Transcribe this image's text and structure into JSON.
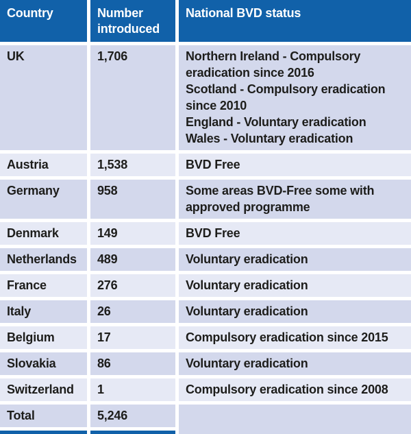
{
  "chart_data": {
    "type": "table",
    "title": "",
    "columns": [
      "Country",
      "Number introduced",
      "National BVD status"
    ],
    "rows": [
      [
        "UK",
        "1,706",
        "Northern Ireland - Compulsory eradication since 2016\nScotland - Compulsory eradication since 2010\nEngland - Voluntary eradication\nWales - Voluntary eradication"
      ],
      [
        "Austria",
        "1,538",
        "BVD Free"
      ],
      [
        "Germany",
        "958",
        "Some areas BVD-Free some with approved programme"
      ],
      [
        "Denmark",
        "149",
        "BVD Free"
      ],
      [
        "Netherlands",
        "489",
        "Voluntary eradication"
      ],
      [
        "France",
        "276",
        "Voluntary eradication"
      ],
      [
        "Italy",
        "26",
        "Voluntary eradication"
      ],
      [
        "Belgium",
        "17",
        "Compulsory eradication since 2015"
      ],
      [
        "Slovakia",
        "86",
        "Voluntary eradication"
      ],
      [
        "Switzerland",
        "1",
        "Compulsory eradication since 2008"
      ],
      [
        "Total",
        "5,246",
        ""
      ]
    ]
  },
  "header": {
    "country": "Country",
    "number": "Number introduced",
    "status": "National BVD status"
  },
  "rows": [
    {
      "country": "UK",
      "number": "1,706",
      "status": "Northern Ireland - Compulsory eradication since 2016\nScotland - Compulsory eradication since 2010\nEngland - Voluntary eradication\nWales - Voluntary eradication"
    },
    {
      "country": "Austria",
      "number": "1,538",
      "status": "BVD Free"
    },
    {
      "country": "Germany",
      "number": "958",
      "status": "Some areas BVD-Free some with approved programme"
    },
    {
      "country": "Denmark",
      "number": "149",
      "status": "BVD Free"
    },
    {
      "country": "Netherlands",
      "number": "489",
      "status": "Voluntary eradication"
    },
    {
      "country": "France",
      "number": "276",
      "status": "Voluntary eradication"
    },
    {
      "country": "Italy",
      "number": "26",
      "status": "Voluntary eradication"
    },
    {
      "country": "Belgium",
      "number": "17",
      "status": "Compulsory eradication since 2015"
    },
    {
      "country": "Slovakia",
      "number": "86",
      "status": "Voluntary eradication"
    },
    {
      "country": "Switzerland",
      "number": "1",
      "status": "Compulsory eradication since 2008"
    },
    {
      "country": "Total",
      "number": "5,246",
      "status": ""
    }
  ],
  "colors": {
    "header_bg": "#1161a9",
    "row_dark": "#d3d8ec",
    "row_light": "#e6e9f5",
    "text": "#1d1d1b",
    "header_text": "#ffffff",
    "separator": "#ffffff"
  }
}
